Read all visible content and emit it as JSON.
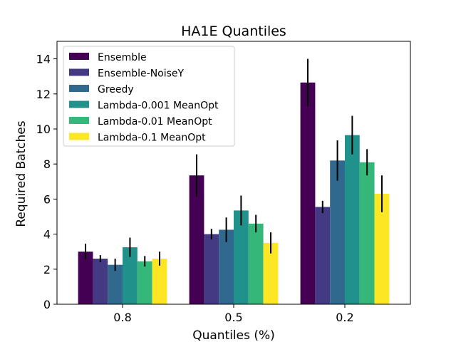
{
  "chart_data": {
    "type": "bar",
    "title": "HA1E Quantiles",
    "xlabel": "Quantiles (%)",
    "ylabel": "Required Batches",
    "categories": [
      "0.8",
      "0.5",
      "0.2"
    ],
    "ylim": [
      0,
      15
    ],
    "yticks": [
      "0",
      "2",
      "4",
      "6",
      "8",
      "10",
      "12",
      "14"
    ],
    "legend_position": "top-left",
    "grid": false,
    "series": [
      {
        "name": "Ensemble",
        "color": "#440154",
        "values": [
          3.0,
          7.35,
          12.65
        ],
        "err": [
          0.45,
          1.2,
          1.35
        ]
      },
      {
        "name": "Ensemble-NoiseY",
        "color": "#443983",
        "values": [
          2.6,
          4.0,
          5.55
        ],
        "err": [
          0.2,
          0.3,
          0.35
        ]
      },
      {
        "name": "Greedy",
        "color": "#31688e",
        "values": [
          2.25,
          4.25,
          8.2
        ],
        "err": [
          0.35,
          0.7,
          1.15
        ]
      },
      {
        "name": "Lambda-0.001 MeanOpt",
        "color": "#21918c",
        "values": [
          3.25,
          5.35,
          9.65
        ],
        "err": [
          0.55,
          0.85,
          1.1
        ]
      },
      {
        "name": "Lambda-0.01 MeanOpt",
        "color": "#35b779",
        "values": [
          2.45,
          4.6,
          8.1
        ],
        "err": [
          0.3,
          0.5,
          0.75
        ]
      },
      {
        "name": "Lambda-0.1 MeanOpt",
        "color": "#fde725",
        "values": [
          2.6,
          3.5,
          6.3
        ],
        "err": [
          0.4,
          0.6,
          1.05
        ]
      }
    ],
    "series_colors_note": ""
  }
}
